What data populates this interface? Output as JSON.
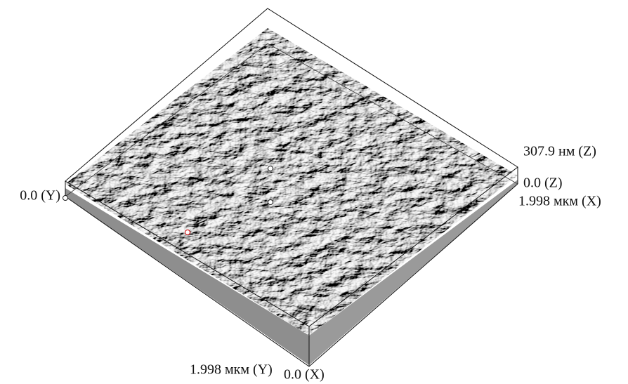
{
  "labels": {
    "z_max": "307.9 нм (Z)",
    "z_min": "0.0 (Z)",
    "x_max": "1.998 мкм (X)",
    "y_min": "0.0 (Y)",
    "y_max": "1.998 мкм (Y)",
    "x_min": "0.0 (X)"
  }
}
